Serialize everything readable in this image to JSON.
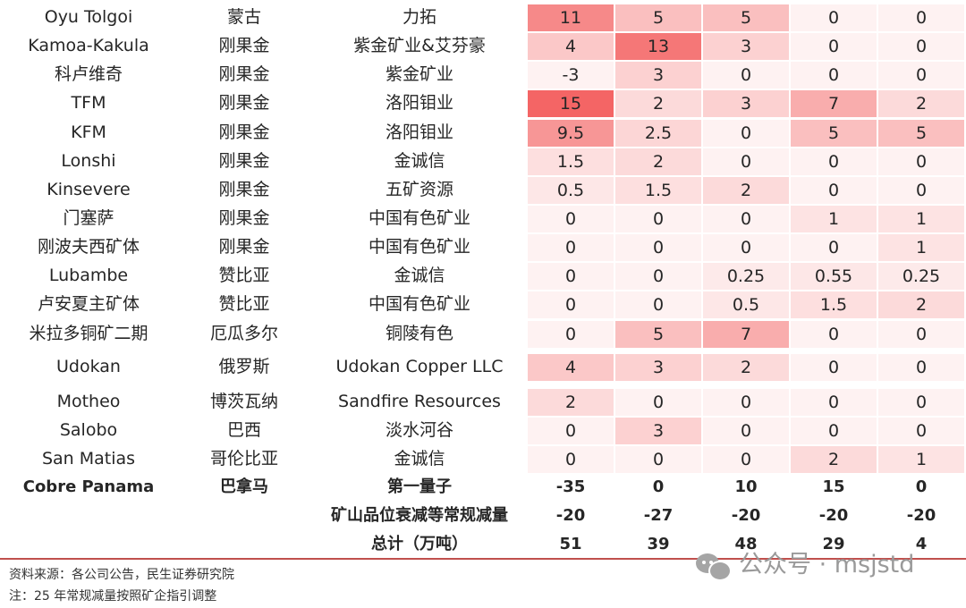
{
  "colors": {
    "heat_base": "#f14343",
    "divider": "#c0504d",
    "max_value": 15
  },
  "rows": [
    {
      "project": "Oyu Tolgoi",
      "country": "蒙古",
      "company": "力拓",
      "values": [
        "11",
        "5",
        "5",
        "0",
        "0"
      ]
    },
    {
      "project": "Kamoa-Kakula",
      "country": "刚果金",
      "company": "紫金矿业&艾芬豪",
      "values": [
        "4",
        "13",
        "3",
        "0",
        "0"
      ]
    },
    {
      "project": "科卢维奇",
      "country": "刚果金",
      "company": "紫金矿业",
      "values": [
        "-3",
        "3",
        "0",
        "0",
        "0"
      ]
    },
    {
      "project": "TFM",
      "country": "刚果金",
      "company": "洛阳钼业",
      "values": [
        "15",
        "2",
        "3",
        "7",
        "2"
      ]
    },
    {
      "project": "KFM",
      "country": "刚果金",
      "company": "洛阳钼业",
      "values": [
        "9.5",
        "2.5",
        "0",
        "5",
        "5"
      ]
    },
    {
      "project": "Lonshi",
      "country": "刚果金",
      "company": "金诚信",
      "values": [
        "1.5",
        "2",
        "0",
        "0",
        "0"
      ]
    },
    {
      "project": "Kinsevere",
      "country": "刚果金",
      "company": "五矿资源",
      "values": [
        "0.5",
        "1.5",
        "2",
        "0",
        "0"
      ]
    },
    {
      "project": "门塞萨",
      "country": "刚果金",
      "company": "中国有色矿业",
      "values": [
        "0",
        "0",
        "0",
        "1",
        "1"
      ]
    },
    {
      "project": "刚波夫西矿体",
      "country": "刚果金",
      "company": "中国有色矿业",
      "values": [
        "0",
        "0",
        "0",
        "0",
        "1"
      ]
    },
    {
      "project": "Lubambe",
      "country": "赞比亚",
      "company": "金诚信",
      "values": [
        "0",
        "0",
        "0.25",
        "0.55",
        "0.25"
      ]
    },
    {
      "project": "卢安夏主矿体",
      "country": "赞比亚",
      "company": "中国有色矿业",
      "values": [
        "0",
        "0",
        "0.5",
        "1.5",
        "2"
      ]
    },
    {
      "project": "米拉多铜矿二期",
      "country": "厄瓜多尔",
      "company": "铜陵有色",
      "values": [
        "0",
        "5",
        "7",
        "0",
        "0"
      ]
    },
    {
      "project": "Udokan",
      "country": "俄罗斯",
      "company": "Udokan Copper LLC",
      "values": [
        "4",
        "3",
        "2",
        "0",
        "0"
      ]
    },
    {
      "project": "Motheo",
      "country": "博茨瓦纳",
      "company": "Sandfire Resources",
      "values": [
        "2",
        "0",
        "0",
        "0",
        "0"
      ]
    },
    {
      "project": "Salobo",
      "country": "巴西",
      "company": "淡水河谷",
      "values": [
        "0",
        "3",
        "0",
        "0",
        "0"
      ]
    },
    {
      "project": "San Matias",
      "country": "哥伦比亚",
      "company": "金诚信",
      "values": [
        "0",
        "0",
        "0",
        "2",
        "1"
      ]
    }
  ],
  "summary_rows": [
    {
      "project": "Cobre Panama",
      "country": "巴拿马",
      "company": "第一量子",
      "values": [
        "-35",
        "0",
        "10",
        "15",
        "0"
      ]
    },
    {
      "project": "",
      "country": "",
      "company": "矿山品位衰减等常规减量",
      "values": [
        "-20",
        "-27",
        "-20",
        "-20",
        "-20"
      ]
    },
    {
      "project": "",
      "country": "",
      "company": "总计（万吨）",
      "values": [
        "51",
        "39",
        "48",
        "29",
        "4"
      ]
    }
  ],
  "footer": {
    "source": "资料来源：各公司公告，民生证券研究院",
    "note": "注：25 年常规减量按照矿企指引调整"
  },
  "watermark": {
    "text": "公众号 · msjstd",
    "icon": "wechat-icon"
  }
}
